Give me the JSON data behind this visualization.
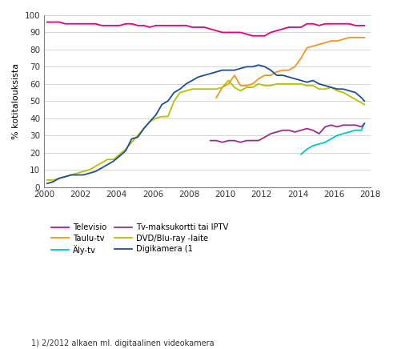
{
  "title": "",
  "ylabel": "% kotitalouksista",
  "footnote": "1) 2/2012 alkaen ml. digitaalinen videokamera",
  "xlim": [
    2000,
    2018
  ],
  "ylim": [
    0,
    100
  ],
  "yticks": [
    0,
    10,
    20,
    30,
    40,
    50,
    60,
    70,
    80,
    90,
    100
  ],
  "xticks": [
    2000,
    2002,
    2004,
    2006,
    2008,
    2010,
    2012,
    2014,
    2016,
    2018
  ],
  "legend_entries": [
    "Televisio",
    "Taulu-tv",
    "Äly-tv",
    "Tv-maksukortti tai IPTV",
    "DVD/Blu-ray -laite",
    "Digikamera (1"
  ],
  "colors": {
    "Televisio": "#e6007e",
    "Taulu-tv": "#f7941d",
    "Aly-tv": "#00c5c8",
    "IPTV": "#9b2d8b",
    "DVD": "#b5c200",
    "Digikamera": "#1f4e99"
  },
  "televisio": {
    "x": [
      2000.17,
      2000.5,
      2000.83,
      2001.17,
      2001.5,
      2001.83,
      2002.17,
      2002.5,
      2002.83,
      2003.17,
      2003.5,
      2003.83,
      2004.17,
      2004.5,
      2004.83,
      2005.17,
      2005.5,
      2005.83,
      2006.17,
      2006.5,
      2006.83,
      2007.17,
      2007.5,
      2007.83,
      2008.17,
      2008.5,
      2008.83,
      2009.17,
      2009.5,
      2009.83,
      2010.17,
      2010.5,
      2010.83,
      2011.17,
      2011.5,
      2011.83,
      2012.17,
      2012.5,
      2012.83,
      2013.17,
      2013.5,
      2013.83,
      2014.17,
      2014.5,
      2014.83,
      2015.17,
      2015.5,
      2015.83,
      2016.17,
      2016.5,
      2016.83,
      2017.17,
      2017.5,
      2017.67
    ],
    "y": [
      96,
      96,
      96,
      95,
      95,
      95,
      95,
      95,
      95,
      94,
      94,
      94,
      94,
      95,
      95,
      94,
      94,
      93,
      94,
      94,
      94,
      94,
      94,
      94,
      93,
      93,
      93,
      92,
      91,
      90,
      90,
      90,
      90,
      89,
      88,
      88,
      88,
      90,
      91,
      92,
      93,
      93,
      93,
      95,
      95,
      94,
      95,
      95,
      95,
      95,
      95,
      94,
      94,
      94
    ]
  },
  "taulu_tv": {
    "x": [
      2009.5,
      2009.83,
      2010.17,
      2010.5,
      2010.83,
      2011.17,
      2011.5,
      2011.83,
      2012.17,
      2012.5,
      2012.83,
      2013.17,
      2013.5,
      2013.83,
      2014.17,
      2014.5,
      2014.83,
      2015.17,
      2015.5,
      2015.83,
      2016.17,
      2016.5,
      2016.83,
      2017.17,
      2017.5,
      2017.67
    ],
    "y": [
      52,
      58,
      60,
      65,
      59,
      59,
      60,
      63,
      65,
      65,
      67,
      68,
      68,
      70,
      75,
      81,
      82,
      83,
      84,
      85,
      85,
      86,
      87,
      87,
      87,
      87
    ]
  },
  "aly_tv": {
    "x": [
      2014.17,
      2014.5,
      2014.83,
      2015.17,
      2015.5,
      2015.83,
      2016.17,
      2016.5,
      2016.83,
      2017.17,
      2017.5,
      2017.67
    ],
    "y": [
      19,
      22,
      24,
      25,
      26,
      28,
      30,
      31,
      32,
      33,
      33,
      37
    ]
  },
  "iptv": {
    "x": [
      2009.17,
      2009.5,
      2009.83,
      2010.17,
      2010.5,
      2010.83,
      2011.17,
      2011.5,
      2011.83,
      2012.17,
      2012.5,
      2012.83,
      2013.17,
      2013.5,
      2013.83,
      2014.17,
      2014.5,
      2014.83,
      2015.17,
      2015.5,
      2015.83,
      2016.17,
      2016.5,
      2016.83,
      2017.17,
      2017.5,
      2017.67
    ],
    "y": [
      27,
      27,
      26,
      27,
      27,
      26,
      27,
      27,
      27,
      29,
      31,
      32,
      33,
      33,
      32,
      33,
      34,
      33,
      31,
      35,
      36,
      35,
      36,
      36,
      36,
      35,
      37
    ]
  },
  "dvd": {
    "x": [
      2000.17,
      2000.5,
      2000.83,
      2001.17,
      2001.5,
      2001.83,
      2002.17,
      2002.5,
      2002.83,
      2003.17,
      2003.5,
      2003.83,
      2004.17,
      2004.5,
      2004.83,
      2005.17,
      2005.5,
      2005.83,
      2006.17,
      2006.5,
      2006.83,
      2007.17,
      2007.5,
      2007.83,
      2008.17,
      2008.5,
      2008.83,
      2009.17,
      2009.5,
      2009.83,
      2010.17,
      2010.5,
      2010.83,
      2011.17,
      2011.5,
      2011.83,
      2012.17,
      2012.5,
      2012.83,
      2013.17,
      2013.5,
      2013.83,
      2014.17,
      2014.5,
      2014.83,
      2015.17,
      2015.5,
      2015.83,
      2016.17,
      2016.5,
      2016.83,
      2017.17,
      2017.5,
      2017.67
    ],
    "y": [
      4,
      4,
      5,
      6,
      7,
      8,
      9,
      10,
      12,
      14,
      16,
      16,
      19,
      22,
      26,
      30,
      34,
      38,
      40,
      41,
      41,
      50,
      55,
      56,
      57,
      57,
      57,
      57,
      57,
      58,
      62,
      58,
      56,
      58,
      58,
      60,
      59,
      59,
      60,
      60,
      60,
      60,
      60,
      59,
      59,
      57,
      57,
      58,
      56,
      55,
      53,
      51,
      49,
      48
    ]
  },
  "digikamera": {
    "x": [
      2000.17,
      2000.5,
      2000.83,
      2001.17,
      2001.5,
      2001.83,
      2002.17,
      2002.5,
      2002.83,
      2003.17,
      2003.5,
      2003.83,
      2004.17,
      2004.5,
      2004.83,
      2005.17,
      2005.5,
      2005.83,
      2006.17,
      2006.5,
      2006.83,
      2007.17,
      2007.5,
      2007.83,
      2008.17,
      2008.5,
      2008.83,
      2009.17,
      2009.5,
      2009.83,
      2010.17,
      2010.5,
      2010.83,
      2011.17,
      2011.5,
      2011.83,
      2012.17,
      2012.5,
      2012.83,
      2013.17,
      2013.5,
      2013.83,
      2014.17,
      2014.5,
      2014.83,
      2015.17,
      2015.5,
      2015.83,
      2016.17,
      2016.5,
      2016.83,
      2017.17,
      2017.5,
      2017.67
    ],
    "y": [
      2,
      3,
      5,
      6,
      7,
      7,
      7,
      8,
      9,
      11,
      13,
      15,
      18,
      21,
      28,
      29,
      34,
      38,
      42,
      48,
      50,
      55,
      57,
      60,
      62,
      64,
      65,
      66,
      67,
      68,
      68,
      68,
      69,
      70,
      70,
      71,
      70,
      68,
      65,
      65,
      64,
      63,
      62,
      61,
      62,
      60,
      59,
      58,
      57,
      57,
      56,
      55,
      52,
      50
    ]
  }
}
